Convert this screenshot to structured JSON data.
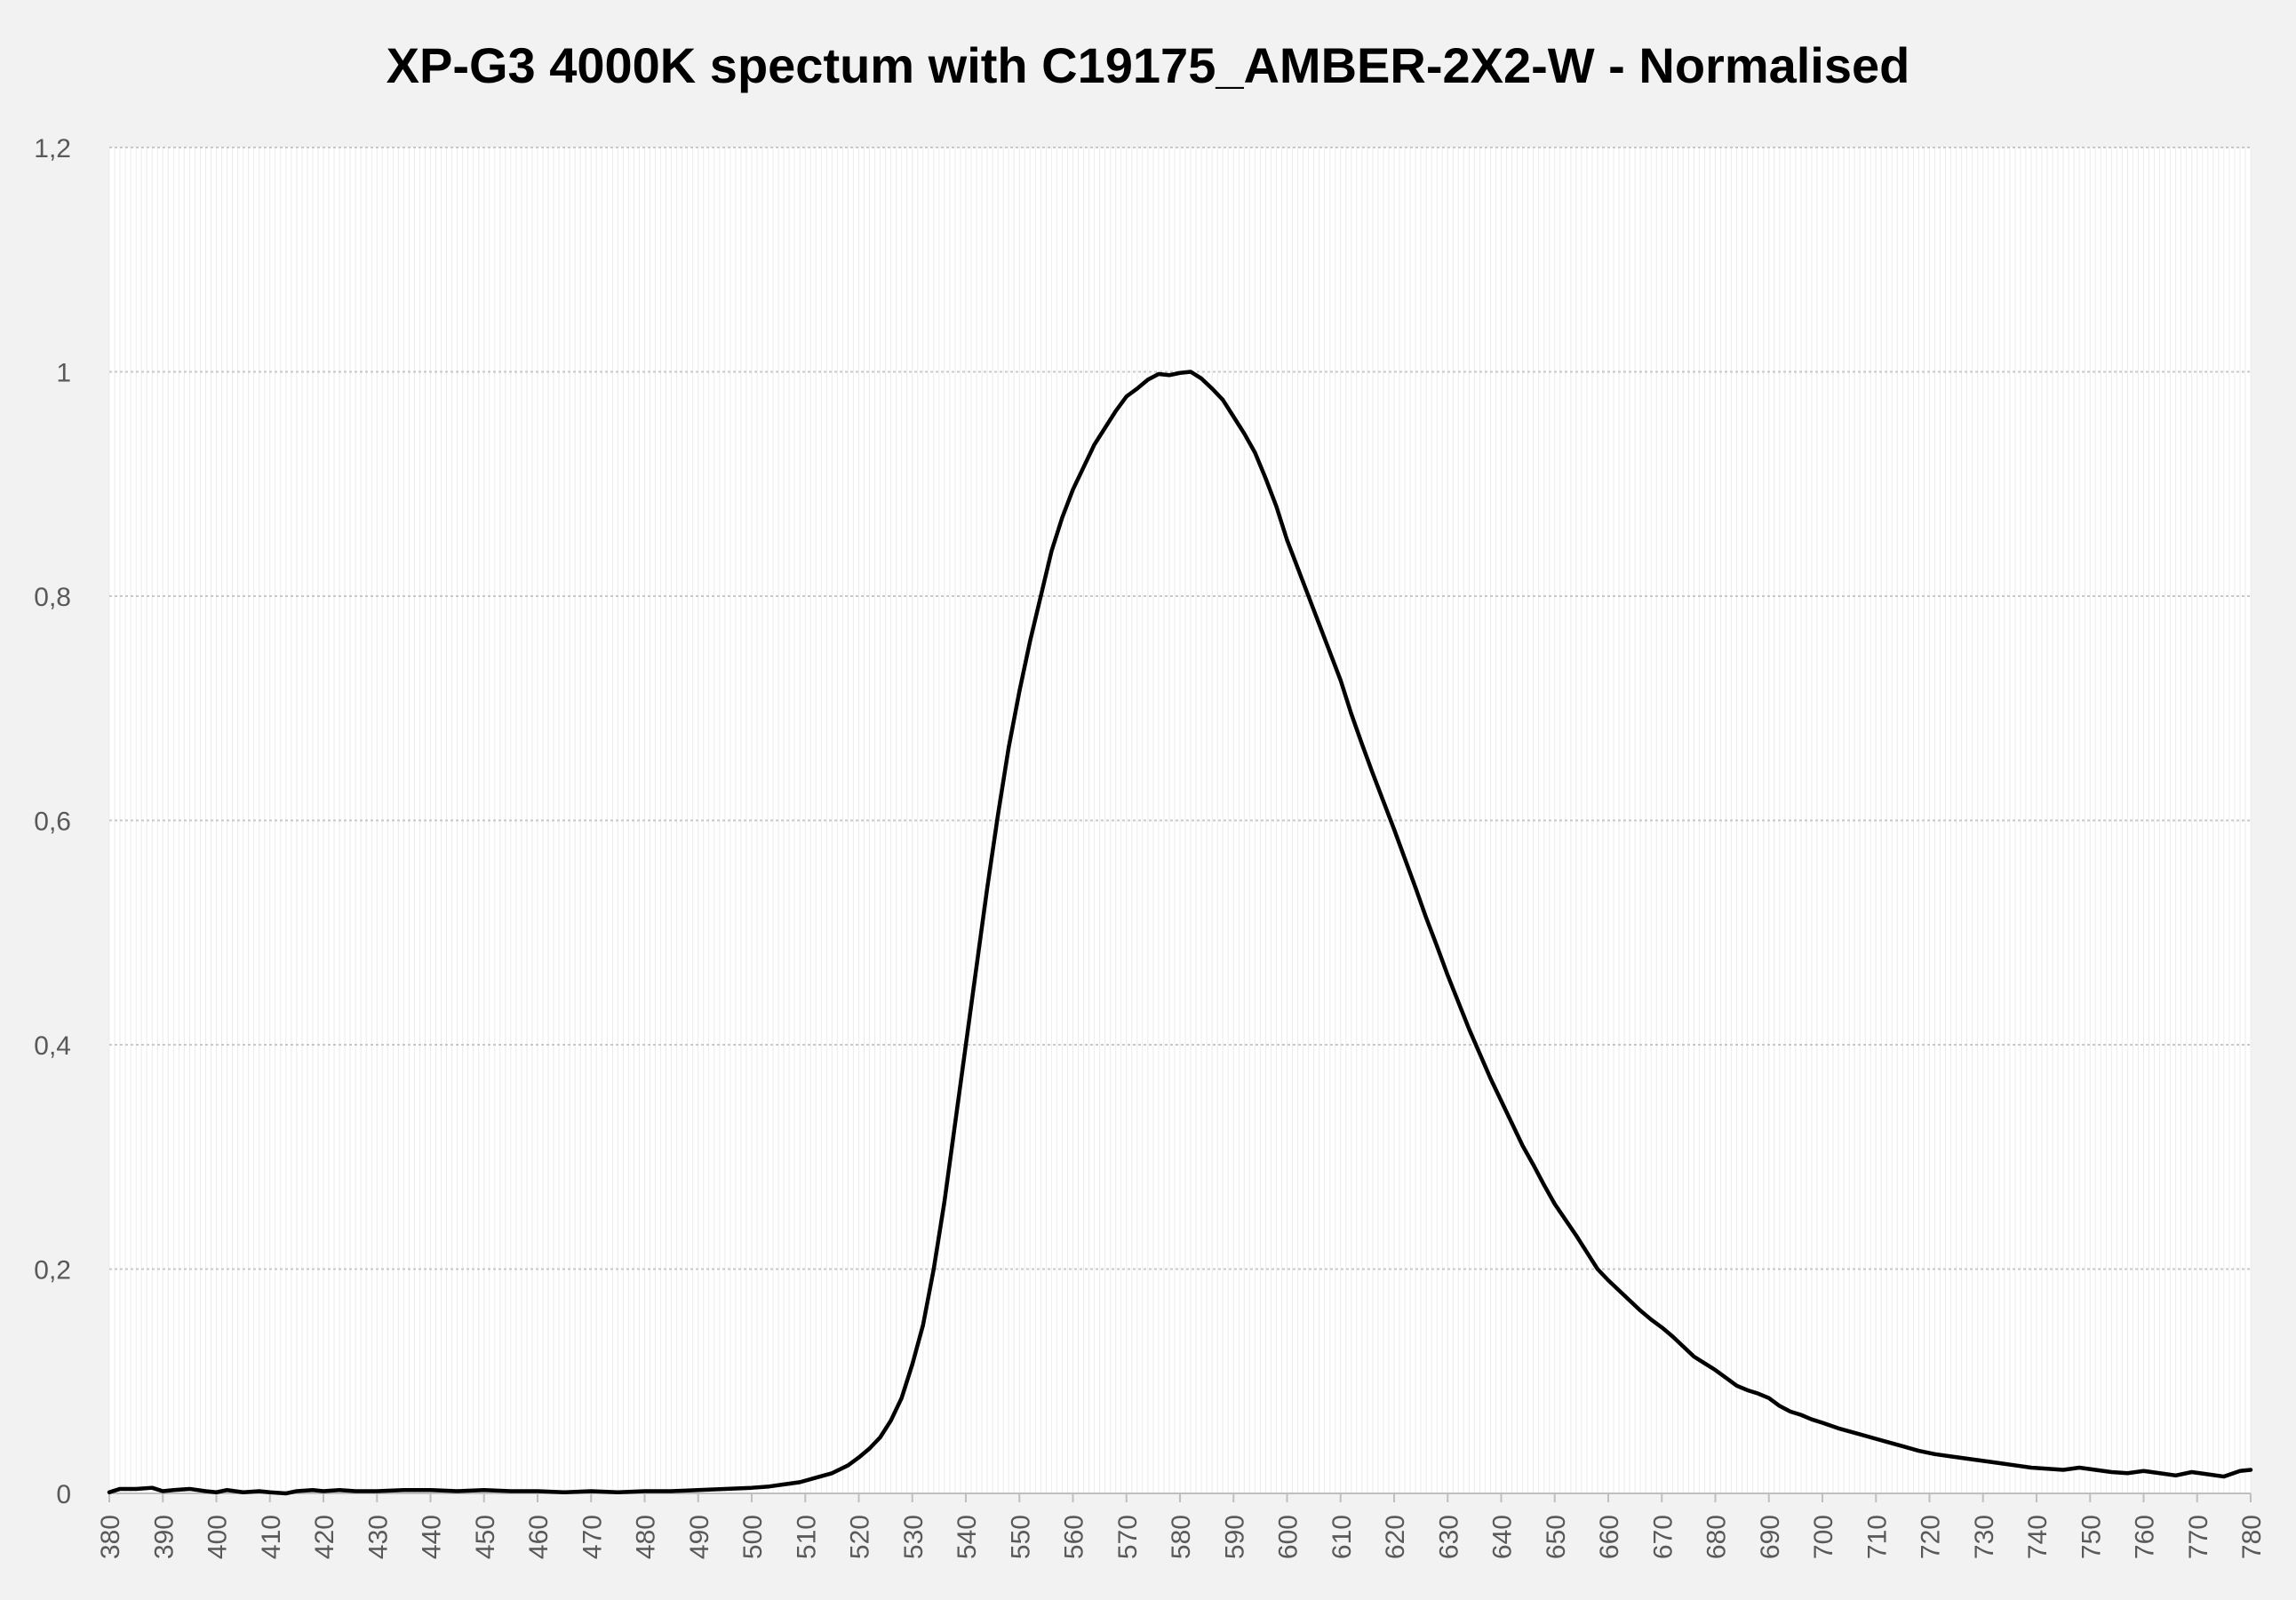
{
  "chart_data": {
    "type": "line",
    "title": "XP-G3 4000K spectum with C19175_AMBER-2X2-W - Normalised",
    "xlabel": "",
    "ylabel": "",
    "xlim": [
      380,
      780
    ],
    "ylim": [
      0,
      1.2
    ],
    "grid": true,
    "legend": "none",
    "x_ticks": [
      "380",
      "390",
      "400",
      "410",
      "420",
      "430",
      "440",
      "450",
      "460",
      "470",
      "480",
      "490",
      "500",
      "510",
      "520",
      "530",
      "540",
      "550",
      "560",
      "570",
      "580",
      "590",
      "600",
      "610",
      "620",
      "630",
      "640",
      "650",
      "660",
      "670",
      "680",
      "690",
      "700",
      "710",
      "720",
      "730",
      "740",
      "750",
      "760",
      "770",
      "780"
    ],
    "y_ticks": [
      "0",
      "0,2",
      "0,4",
      "0,6",
      "0,8",
      "1",
      "1,2"
    ],
    "y_tick_values": [
      0,
      0.2,
      0.4,
      0.6,
      0.8,
      1,
      1.2
    ],
    "series": [
      {
        "points": [
          [
            380,
            0.001
          ],
          [
            382,
            0.004
          ],
          [
            385,
            0.004
          ],
          [
            388,
            0.005
          ],
          [
            390,
            0.002
          ],
          [
            392,
            0.003
          ],
          [
            395,
            0.004
          ],
          [
            398,
            0.002
          ],
          [
            400,
            0.001
          ],
          [
            402,
            0.003
          ],
          [
            405,
            0.001
          ],
          [
            408,
            0.002
          ],
          [
            410,
            0.001
          ],
          [
            413,
            0.0
          ],
          [
            415,
            0.002
          ],
          [
            418,
            0.003
          ],
          [
            420,
            0.002
          ],
          [
            423,
            0.003
          ],
          [
            426,
            0.002
          ],
          [
            430,
            0.002
          ],
          [
            435,
            0.003
          ],
          [
            440,
            0.003
          ],
          [
            445,
            0.002
          ],
          [
            450,
            0.003
          ],
          [
            455,
            0.002
          ],
          [
            460,
            0.002
          ],
          [
            465,
            0.001
          ],
          [
            470,
            0.002
          ],
          [
            475,
            0.001
          ],
          [
            480,
            0.002
          ],
          [
            485,
            0.002
          ],
          [
            490,
            0.003
          ],
          [
            495,
            0.004
          ],
          [
            500,
            0.005
          ],
          [
            503,
            0.006
          ],
          [
            506,
            0.008
          ],
          [
            509,
            0.01
          ],
          [
            512,
            0.014
          ],
          [
            515,
            0.018
          ],
          [
            518,
            0.025
          ],
          [
            520,
            0.032
          ],
          [
            522,
            0.04
          ],
          [
            524,
            0.05
          ],
          [
            526,
            0.065
          ],
          [
            528,
            0.085
          ],
          [
            530,
            0.115
          ],
          [
            532,
            0.15
          ],
          [
            534,
            0.2
          ],
          [
            536,
            0.26
          ],
          [
            538,
            0.33
          ],
          [
            540,
            0.4
          ],
          [
            542,
            0.47
          ],
          [
            544,
            0.54
          ],
          [
            546,
            0.605
          ],
          [
            548,
            0.665
          ],
          [
            550,
            0.715
          ],
          [
            552,
            0.76
          ],
          [
            554,
            0.8
          ],
          [
            556,
            0.84
          ],
          [
            558,
            0.87
          ],
          [
            560,
            0.895
          ],
          [
            562,
            0.915
          ],
          [
            564,
            0.935
          ],
          [
            566,
            0.95
          ],
          [
            568,
            0.965
          ],
          [
            570,
            0.978
          ],
          [
            572,
            0.985
          ],
          [
            574,
            0.993
          ],
          [
            576,
            0.998
          ],
          [
            578,
            0.997
          ],
          [
            580,
            0.999
          ],
          [
            582,
            1.0
          ],
          [
            584,
            0.994
          ],
          [
            586,
            0.985
          ],
          [
            588,
            0.975
          ],
          [
            590,
            0.96
          ],
          [
            592,
            0.945
          ],
          [
            594,
            0.928
          ],
          [
            596,
            0.905
          ],
          [
            598,
            0.88
          ],
          [
            600,
            0.85
          ],
          [
            602,
            0.825
          ],
          [
            604,
            0.8
          ],
          [
            606,
            0.775
          ],
          [
            608,
            0.75
          ],
          [
            610,
            0.725
          ],
          [
            612,
            0.695
          ],
          [
            614,
            0.668
          ],
          [
            616,
            0.642
          ],
          [
            618,
            0.617
          ],
          [
            620,
            0.592
          ],
          [
            622,
            0.566
          ],
          [
            624,
            0.54
          ],
          [
            626,
            0.513
          ],
          [
            628,
            0.488
          ],
          [
            630,
            0.462
          ],
          [
            632,
            0.438
          ],
          [
            634,
            0.414
          ],
          [
            636,
            0.392
          ],
          [
            638,
            0.37
          ],
          [
            640,
            0.35
          ],
          [
            642,
            0.33
          ],
          [
            644,
            0.31
          ],
          [
            646,
            0.293
          ],
          [
            648,
            0.275
          ],
          [
            650,
            0.258
          ],
          [
            652,
            0.244
          ],
          [
            654,
            0.23
          ],
          [
            656,
            0.215
          ],
          [
            658,
            0.2
          ],
          [
            660,
            0.19
          ],
          [
            662,
            0.181
          ],
          [
            664,
            0.172
          ],
          [
            666,
            0.163
          ],
          [
            668,
            0.155
          ],
          [
            670,
            0.148
          ],
          [
            672,
            0.14
          ],
          [
            674,
            0.131
          ],
          [
            676,
            0.122
          ],
          [
            678,
            0.116
          ],
          [
            680,
            0.11
          ],
          [
            682,
            0.103
          ],
          [
            684,
            0.096
          ],
          [
            686,
            0.092
          ],
          [
            688,
            0.089
          ],
          [
            690,
            0.085
          ],
          [
            692,
            0.078
          ],
          [
            694,
            0.073
          ],
          [
            696,
            0.07
          ],
          [
            698,
            0.066
          ],
          [
            700,
            0.063
          ],
          [
            703,
            0.058
          ],
          [
            706,
            0.054
          ],
          [
            709,
            0.05
          ],
          [
            712,
            0.046
          ],
          [
            715,
            0.042
          ],
          [
            718,
            0.038
          ],
          [
            721,
            0.035
          ],
          [
            724,
            0.033
          ],
          [
            727,
            0.031
          ],
          [
            730,
            0.029
          ],
          [
            733,
            0.027
          ],
          [
            736,
            0.025
          ],
          [
            739,
            0.023
          ],
          [
            742,
            0.022
          ],
          [
            745,
            0.021
          ],
          [
            748,
            0.023
          ],
          [
            751,
            0.021
          ],
          [
            754,
            0.019
          ],
          [
            757,
            0.018
          ],
          [
            760,
            0.02
          ],
          [
            763,
            0.018
          ],
          [
            766,
            0.016
          ],
          [
            769,
            0.019
          ],
          [
            772,
            0.017
          ],
          [
            775,
            0.015
          ],
          [
            778,
            0.02
          ],
          [
            780,
            0.021
          ]
        ]
      }
    ]
  },
  "colors": {
    "page_background": "#f2f2f2",
    "plot_background": "#ffffff",
    "line": "#000000",
    "gridline": "#c8c8c8",
    "minor_gridline": "#ececec",
    "tick_text": "#595959"
  }
}
